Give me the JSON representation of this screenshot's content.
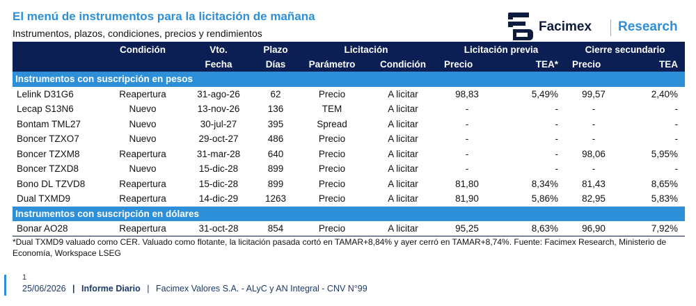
{
  "header": {
    "title": "El menú de instrumentos para la licitación de mañana",
    "subtitle": "Instrumentos, plazos, condiciones, precios y rendimientos"
  },
  "logo": {
    "name": "Facimex",
    "research": "Research"
  },
  "table": {
    "head_top": {
      "condicion": "Condición",
      "vto": "Vto.",
      "plazo": "Plazo",
      "licitacion": "Licitación",
      "licitacion_previa": "Licitación previa",
      "cierre_secundario": "Cierre secundario"
    },
    "head_bottom": {
      "fecha": "Fecha",
      "dias": "Días",
      "parametro": "Parámetro",
      "condicion": "Condición",
      "prev_precio": "Precio",
      "prev_tea": "TEA*",
      "sec_precio": "Precio",
      "sec_tea": "TEA"
    },
    "sections": [
      {
        "title": "Instrumentos con suscripción en pesos",
        "rows": [
          [
            "Lelink D31G6",
            "Reapertura",
            "31-ago-26",
            "62",
            "Precio",
            "A licitar",
            "98,83",
            "5,49%",
            "99,57",
            "2,40%"
          ],
          [
            "Lecap S13N6",
            "Nuevo",
            "13-nov-26",
            "136",
            "TEM",
            "A licitar",
            "-",
            "-",
            "-",
            "-"
          ],
          [
            "Bontam TML27",
            "Nuevo",
            "30-jul-27",
            "395",
            "Spread",
            "A licitar",
            "-",
            "-",
            "-",
            "-"
          ],
          [
            "Boncer TZXO7",
            "Nuevo",
            "29-oct-27",
            "486",
            "Precio",
            "A licitar",
            "-",
            "-",
            "-",
            "-"
          ],
          [
            "Boncer TZXM8",
            "Reapertura",
            "31-mar-28",
            "640",
            "Precio",
            "A licitar",
            "-",
            "-",
            "98,06",
            "5,95%"
          ],
          [
            "Boncer TZXD8",
            "Nuevo",
            "15-dic-28",
            "899",
            "Precio",
            "A licitar",
            "-",
            "-",
            "-",
            "-"
          ],
          [
            "Bono DL TZVD8",
            "Reapertura",
            "15-dic-28",
            "899",
            "Precio",
            "A licitar",
            "81,80",
            "8,34%",
            "81,43",
            "8,65%"
          ],
          [
            "Dual TXMD9",
            "Reapertura",
            "14-dic-29",
            "1263",
            "Precio",
            "A licitar",
            "81,90",
            "5,86%",
            "82,95",
            "5,83%"
          ]
        ]
      },
      {
        "title": "Instrumentos con suscripción en dólares",
        "rows": [
          [
            "Bonar AO28",
            "Reapertura",
            "31-oct-28",
            "854",
            "Precio",
            "A licitar",
            "95,25",
            "8,63%",
            "96,90",
            "7,92%"
          ]
        ]
      }
    ]
  },
  "footnote": "*Dual TXMD9 valuado como CER. Valuado como flotante, la licitación pasada cortó en TAMAR+8,84% y ayer cerró en TAMAR+8,74%. Fuente: Facimex Research, Ministerio de Economía, Workspace LSEG",
  "footer": {
    "page": "1",
    "date": "25/06/2026",
    "separator": "|",
    "report": "Informe Diario",
    "company": "Facimex Valores S.A. - ALyC y AN Integral - CNV N°99"
  },
  "colors": {
    "navy": "#0c1f55",
    "accent_blue": "#2d8fd8"
  }
}
